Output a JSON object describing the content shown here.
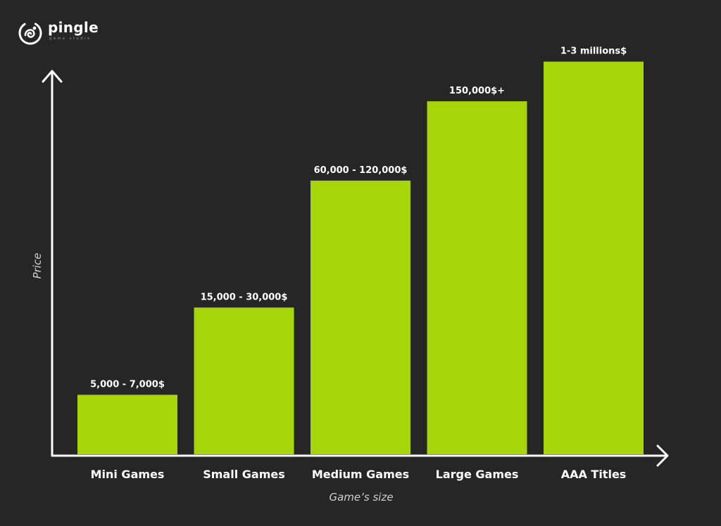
{
  "brand": {
    "name": "pingle",
    "subtitle": "game studio",
    "logo_icon": "chameleon-icon"
  },
  "colors": {
    "background": "#262626",
    "bar": "#a6d609",
    "axis": "#ffffff",
    "text": "#ffffff",
    "axis_title": "#cfcfcf"
  },
  "chart_data": {
    "type": "bar",
    "title": "",
    "xlabel": "Game’s size",
    "ylabel": "Price",
    "categories": [
      "Mini Games",
      "Small Games",
      "Medium Games",
      "Large Games",
      "AAA Titles"
    ],
    "value_labels": [
      "5,000 - 7,000$",
      "15,000 - 30,000$",
      "60,000 - 120,000$",
      "150,000$+",
      "1-3 millions$"
    ],
    "values": [
      1.5,
      3.7,
      6.9,
      8.9,
      9.9
    ],
    "value_note": "relative bar heights on an unlabeled 0-10 price scale",
    "ylim": [
      0,
      10
    ],
    "y_ticks_shown": false,
    "grid": false,
    "legend": "none"
  }
}
